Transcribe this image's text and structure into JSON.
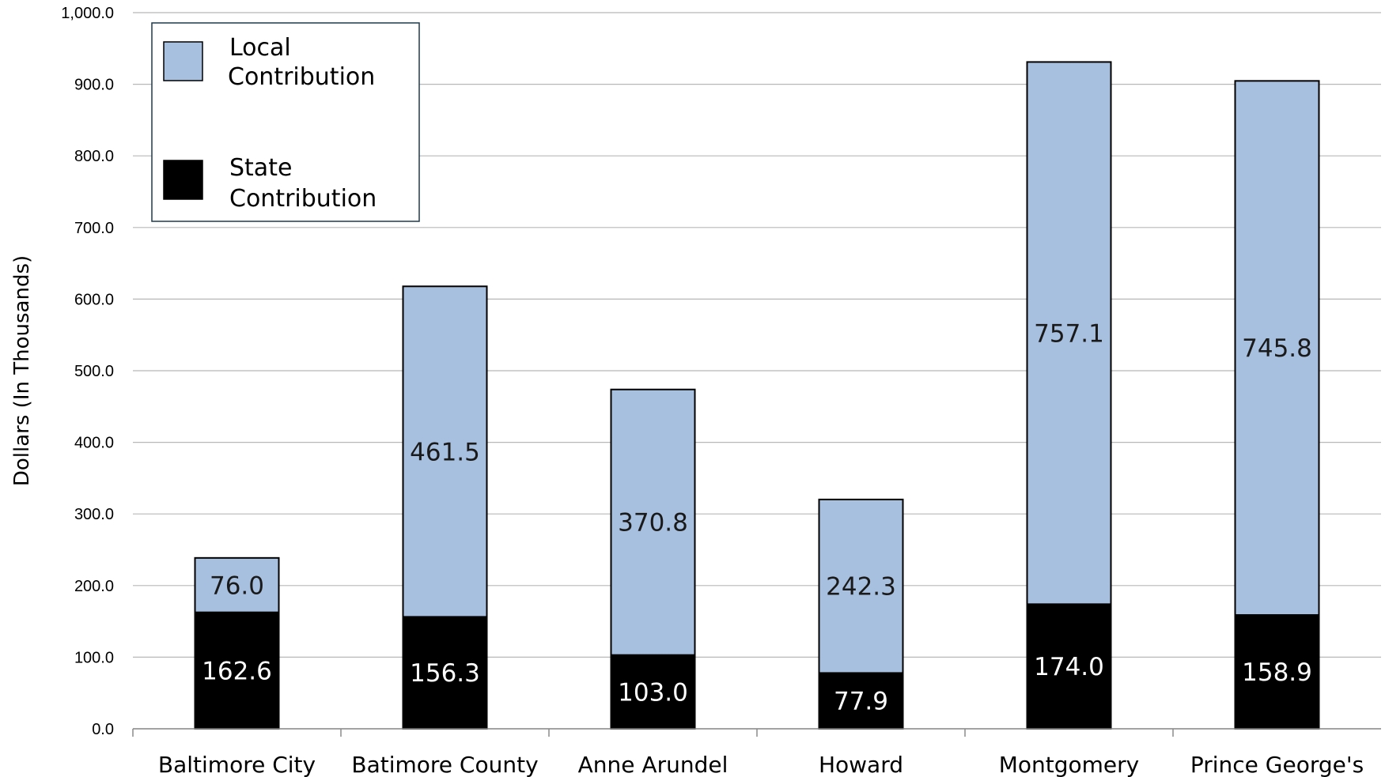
{
  "chart_data": {
    "type": "bar",
    "stacked": true,
    "categories": [
      "Baltimore City",
      "Batimore County",
      "Anne Arundel",
      "Howard",
      "Montgomery",
      "Prince George's"
    ],
    "series": [
      {
        "name": "State Contribution",
        "color": "#000000",
        "label_color": "#ffffff",
        "values": [
          162.6,
          156.3,
          103.0,
          77.9,
          174.0,
          158.9
        ]
      },
      {
        "name": "Local Contribution",
        "color": "#a7c0df",
        "label_color": "#1a1a1a",
        "values": [
          76.0,
          461.5,
          370.8,
          242.3,
          757.1,
          745.8
        ]
      }
    ],
    "value_labels": {
      "State Contribution": [
        "162.6",
        "156.3",
        "103.0",
        "77.9",
        "174.0",
        "158.9"
      ],
      "Local Contribution": [
        "76.0",
        "461.5",
        "370.8",
        "242.3",
        "757.1",
        "745.8"
      ]
    },
    "ylabel": "Dollars (In Thousands)",
    "xlabel": "",
    "ylim": [
      0,
      1000
    ],
    "yticks": [
      0,
      100,
      200,
      300,
      400,
      500,
      600,
      700,
      800,
      900,
      1000
    ],
    "ytick_labels": [
      "0.0",
      "100.0",
      "200.0",
      "300.0",
      "400.0",
      "500.0",
      "600.0",
      "700.0",
      "800.0",
      "900.0",
      "1,000.0"
    ],
    "grid": true,
    "legend": {
      "placement": "top-left",
      "entries": [
        {
          "line1": "Local",
          "line2": "Contribution",
          "color": "#a7c0df"
        },
        {
          "line1": "State",
          "line2": "Contribution",
          "color": "#000000"
        }
      ]
    }
  }
}
